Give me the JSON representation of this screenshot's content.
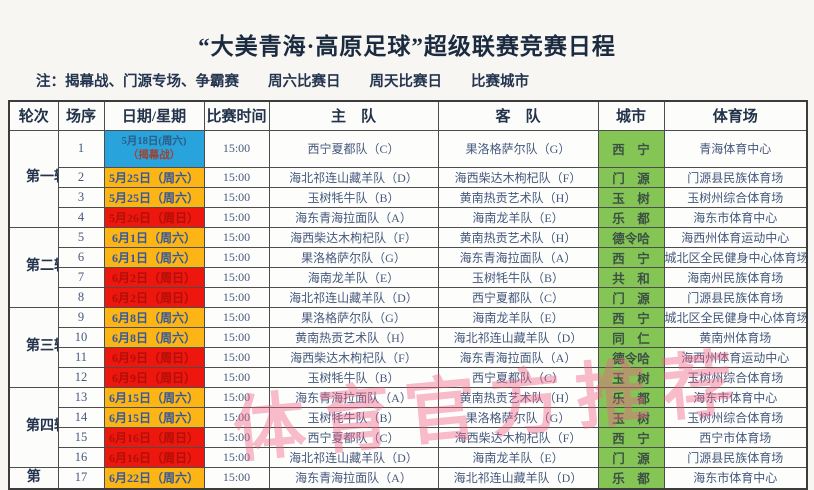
{
  "page": {
    "title": "“大美青海·高原足球”超级联赛竞赛日程",
    "note": "注：揭幕战、门源专场、争霸赛　　周六比赛日　　周天比赛日　　比赛城市",
    "watermark": "体育官方推荐"
  },
  "table": {
    "headers": {
      "round": "轮次",
      "no": "场序",
      "date": "日期/星期",
      "time": "比赛时间",
      "home": "主　队",
      "away": "客　队",
      "city": "城市",
      "stadium": "体育场"
    },
    "rounds": [
      {
        "label": "第一轮",
        "span": 4
      },
      {
        "label": "第二轮",
        "span": 4
      },
      {
        "label": "第三轮",
        "span": 4
      },
      {
        "label": "第四轮",
        "span": 4
      },
      {
        "label": "第",
        "span": 1
      }
    ],
    "rows": [
      {
        "no": "1",
        "date": "5月18日(周六)",
        "date_note": "（揭幕战）",
        "date_type": "opener",
        "time": "15:00",
        "home": "西宁夏都队（C）",
        "away": "果洛格萨尔队（G）",
        "city": "西　宁",
        "stadium": "青海体育中心"
      },
      {
        "no": "2",
        "date": "5月25日（周六）",
        "date_note": "",
        "date_type": "saturday",
        "time": "15:00",
        "home": "海北祁连山藏羊队（D）",
        "away": "海西柴达木枸杞队（F）",
        "city": "门　源",
        "stadium": "门源县民族体育场"
      },
      {
        "no": "3",
        "date": "5月25日（周六）",
        "date_note": "",
        "date_type": "saturday",
        "time": "15:00",
        "home": "玉树牦牛队（B）",
        "away": "黄南热贡艺术队（H）",
        "city": "玉　树",
        "stadium": "玉树州综合体育场"
      },
      {
        "no": "4",
        "date": "5月26日（周日）",
        "date_note": "",
        "date_type": "sunday",
        "time": "15:00",
        "home": "海东青海拉面队（A）",
        "away": "海南龙羊队（E）",
        "city": "乐　都",
        "stadium": "海东市体育中心"
      },
      {
        "no": "5",
        "date": "6月1日（周六）",
        "date_note": "",
        "date_type": "saturday",
        "time": "15:00",
        "home": "海西柴达木枸杞队（F）",
        "away": "黄南热贡艺术队（H）",
        "city": "德令哈",
        "stadium": "海西州体育运动中心"
      },
      {
        "no": "6",
        "date": "6月1日（周六）",
        "date_note": "",
        "date_type": "saturday",
        "time": "15:00",
        "home": "果洛格萨尔队（G）",
        "away": "海东青海拉面队（A）",
        "city": "西　宁",
        "stadium": "城北区全民健身中心体育场"
      },
      {
        "no": "7",
        "date": "6月2日（周日）",
        "date_note": "",
        "date_type": "sunday",
        "time": "15:00",
        "home": "海南龙羊队（E）",
        "away": "玉树牦牛队（B）",
        "city": "共　和",
        "stadium": "海南州民族体育场"
      },
      {
        "no": "8",
        "date": "6月2日（周日）",
        "date_note": "",
        "date_type": "sunday",
        "time": "15:00",
        "home": "海北祁连山藏羊队（D）",
        "away": "西宁夏都队（C）",
        "city": "门　源",
        "stadium": "门源县民族体育场"
      },
      {
        "no": "9",
        "date": "6月8日（周六）",
        "date_note": "",
        "date_type": "saturday",
        "time": "15:00",
        "home": "果洛格萨尔队（G）",
        "away": "海南龙羊队（E）",
        "city": "西　宁",
        "stadium": "城北区全民健身中心体育场"
      },
      {
        "no": "10",
        "date": "6月8日（周六）",
        "date_note": "",
        "date_type": "saturday",
        "time": "15:00",
        "home": "黄南热贡艺术队（H）",
        "away": "海北祁连山藏羊队（D）",
        "city": "同　仁",
        "stadium": "黄南州体育场"
      },
      {
        "no": "11",
        "date": "6月9日（周日）",
        "date_note": "",
        "date_type": "sunday",
        "time": "15:00",
        "home": "海西柴达木枸杞队（F）",
        "away": "海东青海拉面队（A）",
        "city": "德令哈",
        "stadium": "海西州体育运动中心"
      },
      {
        "no": "12",
        "date": "6月9日（周日）",
        "date_note": "",
        "date_type": "sunday",
        "time": "15:00",
        "home": "玉树牦牛队（B）",
        "away": "西宁夏都队（C）",
        "city": "玉　树",
        "stadium": "玉树州综合体育场"
      },
      {
        "no": "13",
        "date": "6月15日（周六）",
        "date_note": "",
        "date_type": "saturday",
        "time": "15:00",
        "home": "海东青海拉面队（A）",
        "away": "黄南热贡艺术队（H）",
        "city": "乐　都",
        "stadium": "海东市体育中心"
      },
      {
        "no": "14",
        "date": "6月15日（周六）",
        "date_note": "",
        "date_type": "saturday",
        "time": "15:00",
        "home": "玉树牦牛队（B）",
        "away": "果洛格萨尔队（G）",
        "city": "玉　树",
        "stadium": "玉树州综合体育场"
      },
      {
        "no": "15",
        "date": "6月16日（周日）",
        "date_note": "",
        "date_type": "sunday",
        "time": "15:00",
        "home": "西宁夏都队（C）",
        "away": "海西柴达木枸杞队（F）",
        "city": "西　宁",
        "stadium": "西宁市体育场"
      },
      {
        "no": "16",
        "date": "6月16日（周日）",
        "date_note": "",
        "date_type": "sunday",
        "time": "15:00",
        "home": "海北祁连山藏羊队（D）",
        "away": "海南龙羊队（E）",
        "city": "门　源",
        "stadium": "门源县民族体育场"
      },
      {
        "no": "17",
        "date": "6月22日（周六）",
        "date_note": "",
        "date_type": "saturday",
        "time": "15:00",
        "home": "海东青海拉面队（A）",
        "away": "海北祁连山藏羊队（D）",
        "city": "乐　都",
        "stadium": "海东市体育中心"
      }
    ]
  },
  "colors": {
    "opener_blue": "#29a3dc",
    "saturday_yellow": "#fdb515",
    "sunday_red": "#ee170d",
    "city_green": "#85c556",
    "watermark_pink": "#ee5f82"
  }
}
